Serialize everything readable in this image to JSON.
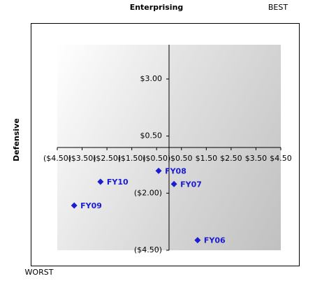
{
  "chart_data": {
    "type": "scatter",
    "x_label": "Enterprising",
    "y_label": "Defensive",
    "annotations": [
      "BEST",
      "WORST"
    ],
    "point_labels": [
      "FY08",
      "FY07",
      "FY10",
      "FY09",
      "FY06"
    ],
    "x": [
      -0.42,
      0.2,
      -2.76,
      -3.82,
      1.15
    ],
    "values": [
      -1.02,
      -1.6,
      -1.5,
      -2.54,
      -4.06
    ],
    "color": "#1c1cd0",
    "xlim": [
      -4.5,
      4.5
    ],
    "xticks": [
      {
        "value": -4.5,
        "label": "($4.50)"
      },
      {
        "value": -3.5,
        "label": "($3.50)"
      },
      {
        "value": -2.5,
        "label": "($2.50)"
      },
      {
        "value": -1.5,
        "label": "($1.50)"
      },
      {
        "value": -0.5,
        "label": "($0.50)"
      },
      {
        "value": 0.5,
        "label": "$0.50"
      },
      {
        "value": 1.5,
        "label": "$1.50"
      },
      {
        "value": 2.5,
        "label": "$2.50"
      },
      {
        "value": 3.5,
        "label": "$3.50"
      },
      {
        "value": 4.5,
        "label": "$4.50"
      }
    ],
    "ylim": [
      -4.5,
      4.5
    ],
    "yticks": [
      {
        "value": -4.5,
        "label": "($4.50)"
      },
      {
        "value": -2,
        "label": "($2.00)"
      },
      {
        "value": 0.5,
        "label": "$0.50"
      },
      {
        "value": 3,
        "label": "$3.00"
      }
    ]
  }
}
